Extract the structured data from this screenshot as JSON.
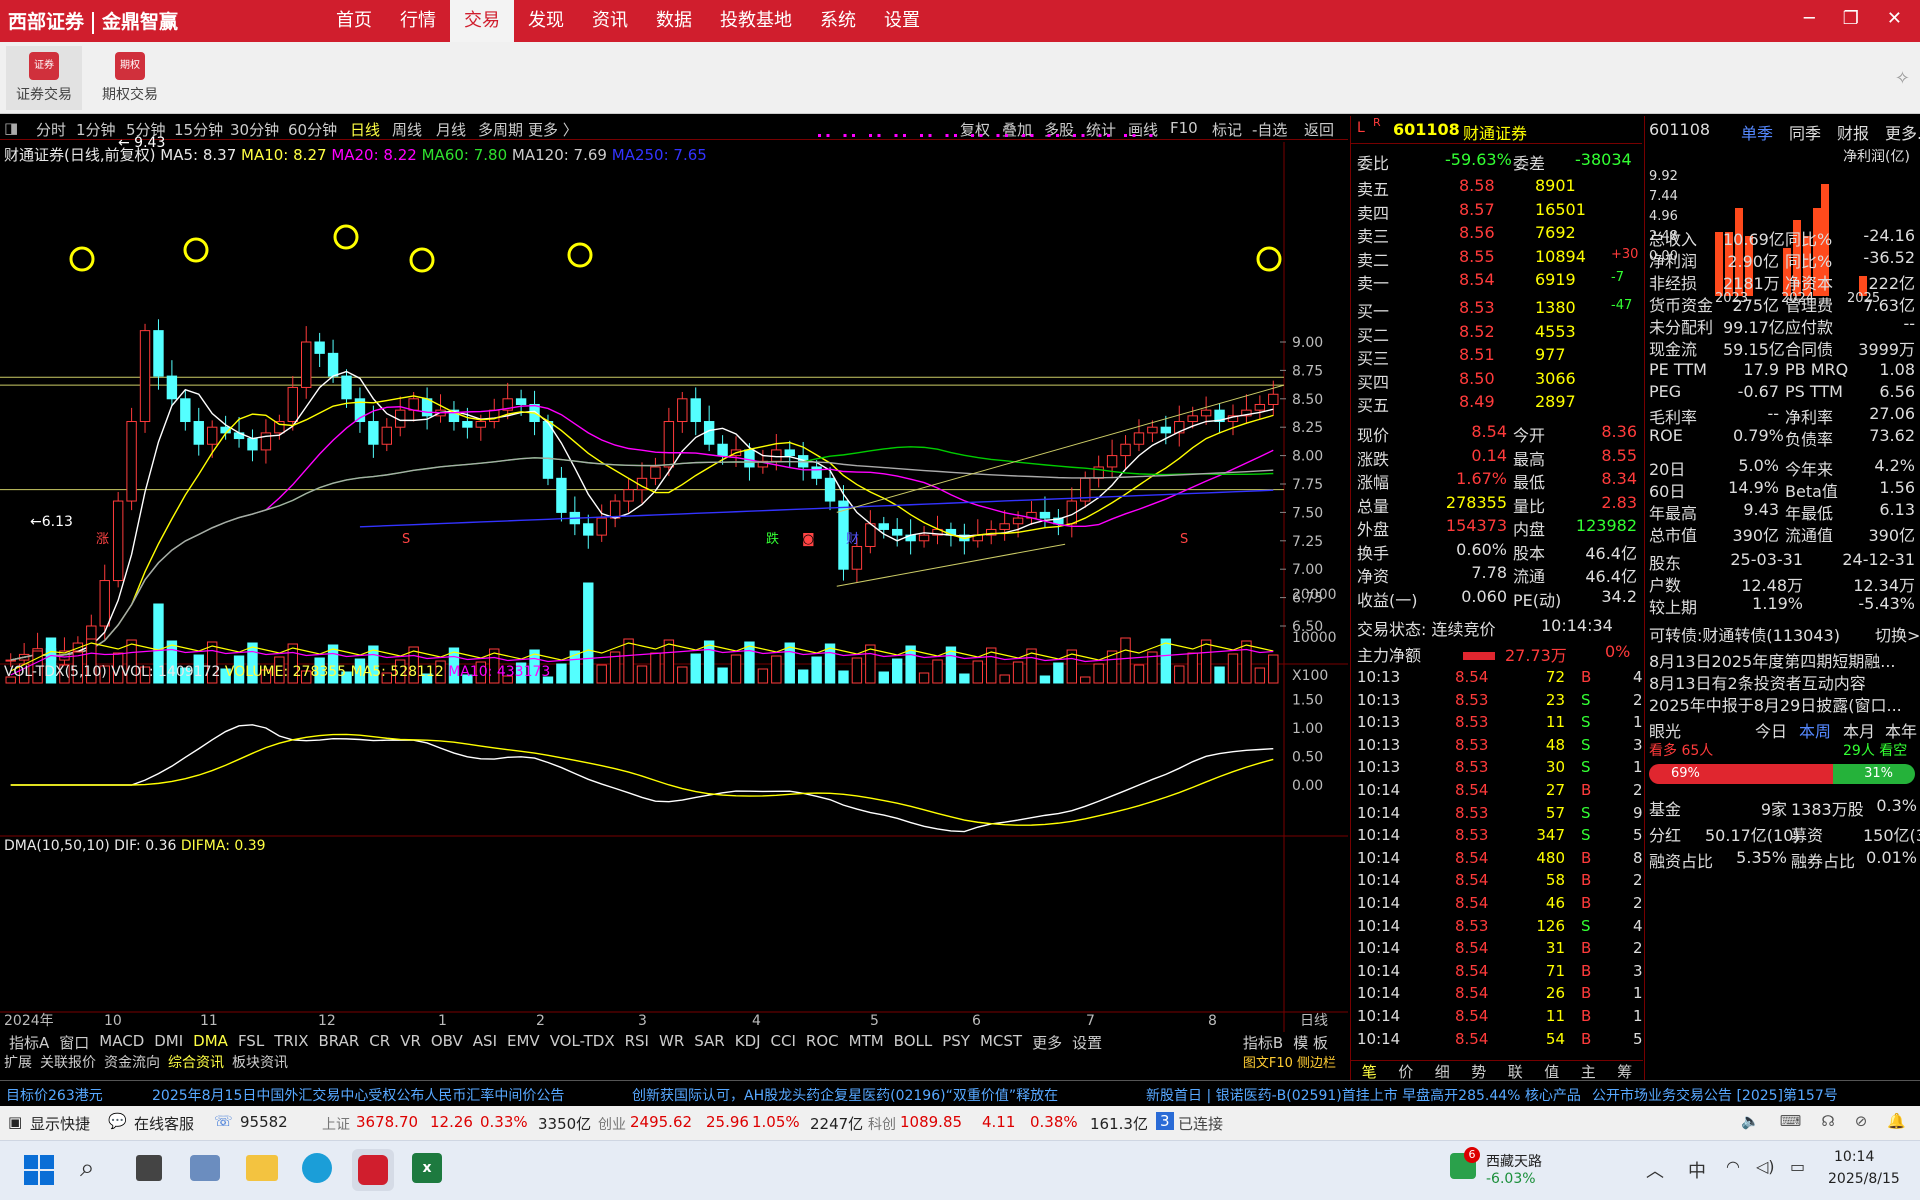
{
  "brand": {
    "name1": "西部证券",
    "name2": "金鼎智赢"
  },
  "menu": [
    "首页",
    "行情",
    "交易",
    "发现",
    "资讯",
    "数据",
    "投教基地",
    "系统",
    "设置"
  ],
  "menu_active": "交易",
  "window_controls": [
    "─",
    "❐",
    "✕"
  ],
  "toolbar": {
    "btn1": "证券交易",
    "btn2": "期权交易",
    "icon1_text": "证券",
    "icon2_text": "期权"
  },
  "periods": [
    "分时",
    "1分钟",
    "5分钟",
    "15分钟",
    "30分钟",
    "60分钟",
    "日线",
    "周线",
    "月线",
    "多周期",
    "更多 〉"
  ],
  "period_active": "日线",
  "chart_tools": [
    "复权",
    "叠加",
    "多股",
    "统计",
    "画线",
    "F10",
    "标记",
    "-自选",
    "返回"
  ],
  "ma_line": {
    "name": "财通证券(日线,前复权)",
    "ma5": "MA5: 8.37",
    "ma10": "MA10: 8.27",
    "ma20": "MA20: 8.22",
    "ma60": "MA60: 7.80",
    "ma120": "MA120: 7.69",
    "ma250": "MA250: 7.65"
  },
  "price_axis": [
    "9.00",
    "8.75",
    "8.50",
    "8.25",
    "8.00",
    "7.75",
    "7.50",
    "7.25",
    "7.00",
    "6.75",
    "6.50"
  ],
  "high_label": "9.43",
  "low_label": "6.13",
  "markers": {
    "zhang": "涨",
    "die": "跌",
    "cai": "财",
    "s": "S"
  },
  "vol_line": {
    "name": "VOL-TDX(5,10)",
    "vvol": "VVOL: 1409172",
    "volume": "VOLUME: 278355",
    "ma5": "MA5: 528112",
    "ma10": "MA10: 433173"
  },
  "vol_axis": [
    "20000",
    "10000",
    "X100"
  ],
  "dma_line": {
    "name": "DMA(10,50,10)",
    "dif": "DIF: 0.36",
    "difma": "DIFMA: 0.39"
  },
  "dma_axis": [
    "1.50",
    "1.00",
    "0.50",
    "0.00"
  ],
  "date_axis": [
    "2024年",
    "10",
    "11",
    "12",
    "1",
    "2",
    "3",
    "4",
    "5",
    "6",
    "7",
    "8"
  ],
  "date_axis_right": "日线",
  "indicator_tabs": [
    "指标A",
    "窗口",
    "MACD",
    "DMI",
    "DMA",
    "FSL",
    "TRIX",
    "BRAR",
    "CR",
    "VR",
    "OBV",
    "ASI",
    "EMV",
    "VOL-TDX",
    "RSI",
    "WR",
    "SAR",
    "KDJ",
    "CCI",
    "ROC",
    "MTM",
    "BOLL",
    "PSY",
    "MCST",
    "更多",
    "设置"
  ],
  "indicator_active": "DMA",
  "indicator_right": [
    "指标B",
    "模 板"
  ],
  "sub_tabs": [
    "扩展",
    "关联报价",
    "资金流向",
    "综合资讯",
    "板块资讯"
  ],
  "sub_tabs_right": "图文F10 侧边栏",
  "stock": {
    "tag": "L",
    "tag2": "R",
    "code": "601108",
    "name": "财通证券"
  },
  "weibi": {
    "l1": "委比",
    "v1": "-59.63%",
    "l2": "委差",
    "v2": "-38034"
  },
  "sells": [
    [
      "卖五",
      "8.58",
      "8901",
      ""
    ],
    [
      "卖四",
      "8.57",
      "16501",
      ""
    ],
    [
      "卖三",
      "8.56",
      "7692",
      ""
    ],
    [
      "卖二",
      "8.55",
      "10894",
      "+30"
    ],
    [
      "卖一",
      "8.54",
      "6919",
      "-7"
    ]
  ],
  "buys": [
    [
      "买一",
      "8.53",
      "1380",
      "-47"
    ],
    [
      "买二",
      "8.52",
      "4553",
      ""
    ],
    [
      "买三",
      "8.51",
      "977",
      ""
    ],
    [
      "买四",
      "8.50",
      "3066",
      ""
    ],
    [
      "买五",
      "8.49",
      "2897",
      ""
    ]
  ],
  "quote": [
    [
      "现价",
      "8.54",
      "今开",
      "8.36"
    ],
    [
      "涨跌",
      "0.14",
      "最高",
      "8.55"
    ],
    [
      "涨幅",
      "1.67%",
      "最低",
      "8.34"
    ],
    [
      "总量",
      "278355",
      "量比",
      "2.83"
    ],
    [
      "外盘",
      "154373",
      "内盘",
      "123982"
    ],
    [
      "换手",
      "0.60%",
      "股本",
      "46.4亿"
    ],
    [
      "净资",
      "7.78",
      "流通",
      "46.4亿"
    ],
    [
      "收益(一)",
      "0.060",
      "PE(动)",
      "34.2"
    ]
  ],
  "trade_status": {
    "label": "交易状态: 连续竞价",
    "time": "10:14:34"
  },
  "main_flow": {
    "label": "主力净额",
    "value": "27.73万",
    "pct": "0%"
  },
  "ticks": [
    [
      "10:13",
      "8.54",
      "72",
      "B",
      "4"
    ],
    [
      "10:13",
      "8.53",
      "23",
      "S",
      "2"
    ],
    [
      "10:13",
      "8.53",
      "11",
      "S",
      "1"
    ],
    [
      "10:13",
      "8.53",
      "48",
      "S",
      "3"
    ],
    [
      "10:13",
      "8.53",
      "30",
      "S",
      "1"
    ],
    [
      "10:14",
      "8.54",
      "27",
      "B",
      "2"
    ],
    [
      "10:14",
      "8.53",
      "57",
      "S",
      "9"
    ],
    [
      "10:14",
      "8.53",
      "347",
      "S",
      "5"
    ],
    [
      "10:14",
      "8.54",
      "480",
      "B",
      "8"
    ],
    [
      "10:14",
      "8.54",
      "58",
      "B",
      "2"
    ],
    [
      "10:14",
      "8.54",
      "46",
      "B",
      "2"
    ],
    [
      "10:14",
      "8.53",
      "126",
      "S",
      "4"
    ],
    [
      "10:14",
      "8.54",
      "31",
      "B",
      "2"
    ],
    [
      "10:14",
      "8.54",
      "71",
      "B",
      "3"
    ],
    [
      "10:14",
      "8.54",
      "26",
      "B",
      "1"
    ],
    [
      "10:14",
      "8.54",
      "11",
      "B",
      "1"
    ],
    [
      "10:14",
      "8.54",
      "54",
      "B",
      "5"
    ]
  ],
  "tick_tabs": [
    "笔",
    "价",
    "细",
    "势",
    "联",
    "值",
    "主",
    "筹"
  ],
  "f10": {
    "code": "601108",
    "tabs": [
      "单季",
      "同季",
      "财报",
      "更多..."
    ],
    "chart_title": "净利润(亿)",
    "yaxis": [
      "9.92",
      "7.44",
      "4.96",
      "2.48",
      "0.00"
    ],
    "years": [
      "2023",
      "2024",
      "2025"
    ]
  },
  "fin": [
    [
      "总收入",
      "10.69亿",
      "同比%",
      "-24.16"
    ],
    [
      "净利润",
      "2.90亿",
      "同比%",
      "-36.52"
    ],
    [
      "非经损",
      "2181万",
      "净资本",
      "222亿"
    ],
    [
      "货币资金",
      "275亿",
      "管理费",
      "7.63亿"
    ],
    [
      "未分配利",
      "99.17亿",
      "应付款",
      "--"
    ],
    [
      "现金流",
      "59.15亿",
      "合同债",
      "3999万"
    ]
  ],
  "fin2": [
    [
      "PE TTM",
      "17.9",
      "PB MRQ",
      "1.08"
    ],
    [
      "PEG",
      "-0.67",
      "PS TTM",
      "6.56"
    ],
    [
      "毛利率",
      "--",
      "净利率",
      "27.06"
    ],
    [
      "ROE",
      "0.79%",
      "负债率",
      "73.62"
    ]
  ],
  "perf": [
    [
      "20日",
      "5.0%",
      "今年来",
      "4.2%"
    ],
    [
      "60日",
      "14.9%",
      "Beta值",
      "1.56"
    ],
    [
      "年最高",
      "9.43",
      "年最低",
      "6.13"
    ],
    [
      "总市值",
      "390亿",
      "流通值",
      "390亿"
    ]
  ],
  "holders": {
    "h": [
      "股东",
      "25-03-31",
      "24-12-31"
    ],
    "r1": [
      "户数",
      "12.48万",
      "12.34万"
    ],
    "r2": [
      "较上期",
      "1.19%",
      "-5.43%"
    ]
  },
  "news": {
    "cb": "可转债:财通转债(113043)",
    "cb_action": "切换>",
    "n1": "8月13日2025年度第四期短期融...",
    "n2": "8月13日有2条投资者互动内容",
    "n3": "2025年中报于8月29日披露(窗口..."
  },
  "eyes": {
    "label": "眼光",
    "tabs": [
      "今日",
      "本周",
      "本月",
      "本年"
    ],
    "active": "本周",
    "bull": "看多 65人",
    "bear": "29人 看空",
    "bull_pct": "69%",
    "bear_pct": "31%"
  },
  "funds": [
    [
      "基金",
      "9家",
      "1383万股",
      "0.3%"
    ],
    [
      "分红",
      "50.17亿(10)",
      "募资",
      "150亿(3)"
    ],
    [
      "融资占比",
      "5.35%",
      "融券占比",
      "0.01%"
    ]
  ],
  "ticker": [
    "目标价263港元",
    "2025年8月15日中国外汇交易中心受权公布人民币汇率中间价公告",
    "创新获国际认可，AH股龙头药企复星医药(02196)“双重价值”释放在",
    "新股首日 | 银诺医药-B(02591)首挂上市 早盘高开285.44% 核心产品",
    "公开市场业务交易公告 [2025]第157号"
  ],
  "status": {
    "quick": "显示快捷",
    "service": "在线客服",
    "phone": "95582",
    "sh_label": "上证",
    "sh": "3678.70",
    "sh_chg": "12.26",
    "sh_pct": "0.33%",
    "sh_amt": "3350亿",
    "cy_label": "创业",
    "cy": "2495.62",
    "cy_chg": "25.96",
    "cy_pct": "1.05%",
    "cy_amt": "2247亿",
    "kc_label": "科创",
    "kc": "1089.85",
    "kc_chg": "4.11",
    "kc_pct": "0.38%",
    "kc_amt": "161.3亿",
    "conn_num": "3",
    "conn": "已连接"
  },
  "taskbar": {
    "weather_name": "西藏天路",
    "weather_val": "-6.03%",
    "badge": "6",
    "ime": "中",
    "time": "10:14",
    "date": "2025/8/15"
  },
  "chart_data": {
    "type": "candlestick",
    "title": "财通证券(日线,前复权)",
    "ylim": [
      6.13,
      9.43
    ],
    "price_close": [
      6.2,
      6.25,
      6.3,
      6.2,
      6.28,
      6.35,
      6.5,
      6.9,
      7.6,
      8.3,
      9.1,
      8.7,
      8.5,
      8.3,
      8.1,
      8.25,
      8.2,
      8.15,
      8.05,
      8.2,
      8.3,
      8.6,
      9.0,
      8.9,
      8.7,
      8.5,
      8.3,
      8.1,
      8.25,
      8.4,
      8.5,
      8.35,
      8.4,
      8.3,
      8.25,
      8.3,
      8.4,
      8.5,
      8.45,
      8.3,
      7.8,
      7.5,
      7.4,
      7.3,
      7.45,
      7.6,
      7.7,
      7.8,
      7.9,
      8.3,
      8.5,
      8.3,
      8.1,
      8.0,
      8.05,
      7.9,
      7.95,
      8.05,
      8.0,
      7.9,
      7.8,
      7.6,
      7.0,
      7.2,
      7.4,
      7.35,
      7.3,
      7.25,
      7.3,
      7.35,
      7.3,
      7.25,
      7.3,
      7.35,
      7.4,
      7.45,
      7.5,
      7.45,
      7.4,
      7.6,
      7.8,
      7.9,
      8.0,
      8.1,
      8.2,
      8.25,
      8.2,
      8.3,
      8.35,
      8.4,
      8.3,
      8.35,
      8.4,
      8.45,
      8.54
    ]
  }
}
